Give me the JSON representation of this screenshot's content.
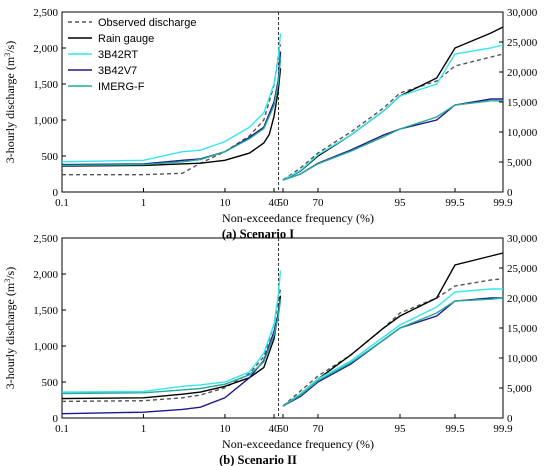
{
  "figure": {
    "background": "#ffffff"
  },
  "chart_data": [
    {
      "type": "line",
      "caption": "(a) Scenario I",
      "xlabel": "Non-exceedance frequency (%)",
      "ylabel_left": "3-hourly discharge (m",
      "ylabel_sup": "3",
      "ylabel_tail": "/s)",
      "x_ticks": [
        {
          "v": 0.1,
          "label": "0.1"
        },
        {
          "v": 1,
          "label": "1"
        },
        {
          "v": 10,
          "label": "10"
        },
        {
          "v": 40,
          "label": "40"
        },
        {
          "v": 50,
          "label": "50"
        },
        {
          "v": 70,
          "label": "70"
        },
        {
          "v": 95,
          "label": "95"
        },
        {
          "v": 99.5,
          "label": "99.5"
        },
        {
          "v": 99.9,
          "label": "99.9"
        }
      ],
      "ylim_left": [
        0,
        2500
      ],
      "y_ticks_left": [
        "0",
        "500",
        "1,000",
        "1,500",
        "2,000",
        "2,500"
      ],
      "ylim_right": [
        0,
        30000
      ],
      "y_ticks_right": [
        "0",
        "5,000",
        "10,000",
        "15,000",
        "20,000",
        "25,000",
        "30,000"
      ],
      "divider_x": 50,
      "legend_position": "top-left",
      "series": [
        {
          "name": "Observed  discharge",
          "color": "#555555",
          "dash": "4,3",
          "left": [
            [
              0.1,
              240
            ],
            [
              1,
              240
            ],
            [
              3,
              260
            ],
            [
              5,
              400
            ],
            [
              10,
              560
            ],
            [
              20,
              780
            ],
            [
              30,
              1000
            ],
            [
              40,
              1480
            ],
            [
              45,
              1880
            ],
            [
              48,
              2050
            ]
          ],
          "right": [
            [
              50,
              2000
            ],
            [
              60,
              4000
            ],
            [
              70,
              6500
            ],
            [
              80,
              10000
            ],
            [
              90,
              14000
            ],
            [
              95,
              16500
            ],
            [
              98,
              18500
            ],
            [
              99.5,
              21000
            ],
            [
              99.8,
              22500
            ],
            [
              99.9,
              23000
            ]
          ]
        },
        {
          "name": "Rain gauge",
          "color": "#000000",
          "dash": "",
          "left": [
            [
              0.1,
              360
            ],
            [
              1,
              370
            ],
            [
              5,
              400
            ],
            [
              10,
              440
            ],
            [
              20,
              540
            ],
            [
              30,
              680
            ],
            [
              35,
              800
            ],
            [
              40,
              1050
            ],
            [
              45,
              1400
            ],
            [
              48,
              1720
            ]
          ],
          "right": [
            [
              50,
              2000
            ],
            [
              60,
              3500
            ],
            [
              70,
              6000
            ],
            [
              80,
              9500
            ],
            [
              90,
              13500
            ],
            [
              95,
              16000
            ],
            [
              98,
              19000
            ],
            [
              99.5,
              24000
            ],
            [
              99.8,
              26500
            ],
            [
              99.9,
              27500
            ]
          ]
        },
        {
          "name": "3B42RT",
          "color": "#33e6ee",
          "dash": "",
          "left": [
            [
              0.1,
              420
            ],
            [
              1,
              440
            ],
            [
              3,
              560
            ],
            [
              5,
              580
            ],
            [
              10,
              700
            ],
            [
              20,
              900
            ],
            [
              30,
              1100
            ],
            [
              40,
              1500
            ],
            [
              45,
              1850
            ],
            [
              48,
              2200
            ]
          ],
          "right": [
            [
              50,
              2000
            ],
            [
              60,
              3600
            ],
            [
              70,
              6200
            ],
            [
              80,
              9500
            ],
            [
              90,
              13500
            ],
            [
              95,
              16000
            ],
            [
              98,
              18000
            ],
            [
              99.5,
              23000
            ],
            [
              99.8,
              24000
            ],
            [
              99.9,
              24500
            ]
          ]
        },
        {
          "name": "3B42V7",
          "color": "#1a1a8e",
          "dash": "",
          "left": [
            [
              0.1,
              380
            ],
            [
              1,
              390
            ],
            [
              3,
              440
            ],
            [
              5,
              460
            ],
            [
              10,
              560
            ],
            [
              20,
              760
            ],
            [
              30,
              900
            ],
            [
              40,
              1250
            ],
            [
              45,
              1550
            ],
            [
              48,
              1950
            ]
          ],
          "right": [
            [
              50,
              2000
            ],
            [
              60,
              3000
            ],
            [
              70,
              4800
            ],
            [
              80,
              7000
            ],
            [
              90,
              9500
            ],
            [
              95,
              10500
            ],
            [
              98,
              12000
            ],
            [
              99.5,
              14500
            ],
            [
              99.8,
              15500
            ],
            [
              99.9,
              15500
            ]
          ]
        },
        {
          "name": "IMERG-F",
          "color": "#2aa898",
          "dash": "",
          "left": [
            [
              0.1,
              370
            ],
            [
              1,
              380
            ],
            [
              3,
              420
            ],
            [
              5,
              450
            ],
            [
              10,
              560
            ],
            [
              20,
              740
            ],
            [
              30,
              880
            ],
            [
              40,
              1200
            ],
            [
              45,
              1500
            ],
            [
              48,
              1850
            ]
          ],
          "right": [
            [
              50,
              2000
            ],
            [
              60,
              3000
            ],
            [
              70,
              4700
            ],
            [
              80,
              6800
            ],
            [
              90,
              9200
            ],
            [
              95,
              10500
            ],
            [
              98,
              12500
            ],
            [
              99.5,
              14500
            ],
            [
              99.8,
              15200
            ],
            [
              99.9,
              15200
            ]
          ]
        }
      ]
    },
    {
      "type": "line",
      "caption": "(b) Scenario II",
      "xlabel": "Non-exceedance frequency (%)",
      "ylabel_left": "3-hourly discharge (m",
      "ylabel_sup": "3",
      "ylabel_tail": "/s)",
      "x_ticks": [
        {
          "v": 0.1,
          "label": "0.1"
        },
        {
          "v": 1,
          "label": "1"
        },
        {
          "v": 10,
          "label": "10"
        },
        {
          "v": 40,
          "label": "40"
        },
        {
          "v": 50,
          "label": "50"
        },
        {
          "v": 70,
          "label": "70"
        },
        {
          "v": 95,
          "label": "95"
        },
        {
          "v": 99.5,
          "label": "99.5"
        },
        {
          "v": 99.9,
          "label": "99.9"
        }
      ],
      "ylim_left": [
        0,
        2500
      ],
      "y_ticks_left": [
        "0",
        "500",
        "1,000",
        "1,500",
        "2,000",
        "2,500"
      ],
      "ylim_right": [
        0,
        30000
      ],
      "y_ticks_right": [
        "0",
        "5,000",
        "10,000",
        "15,000",
        "20,000",
        "25,000",
        "30,000"
      ],
      "divider_x": 50,
      "legend_position": "none",
      "series": [
        {
          "name": "Observed  discharge",
          "color": "#555555",
          "dash": "4,3",
          "left": [
            [
              0.1,
              230
            ],
            [
              1,
              240
            ],
            [
              3,
              280
            ],
            [
              5,
              320
            ],
            [
              10,
              420
            ],
            [
              20,
              620
            ],
            [
              30,
              850
            ],
            [
              40,
              1300
            ],
            [
              45,
              1600
            ],
            [
              48,
              1800
            ]
          ],
          "right": [
            [
              50,
              2000
            ],
            [
              60,
              4500
            ],
            [
              70,
              7000
            ],
            [
              80,
              10500
            ],
            [
              90,
              15000
            ],
            [
              95,
              17500
            ],
            [
              98,
              20000
            ],
            [
              99.5,
              22000
            ],
            [
              99.8,
              23000
            ],
            [
              99.9,
              23200
            ]
          ]
        },
        {
          "name": "Rain gauge",
          "color": "#000000",
          "dash": "",
          "left": [
            [
              0.1,
              270
            ],
            [
              1,
              280
            ],
            [
              3,
              330
            ],
            [
              5,
              360
            ],
            [
              10,
              440
            ],
            [
              20,
              560
            ],
            [
              30,
              700
            ],
            [
              40,
              1100
            ],
            [
              45,
              1450
            ],
            [
              48,
              1700
            ]
          ],
          "right": [
            [
              50,
              2000
            ],
            [
              60,
              4000
            ],
            [
              70,
              6500
            ],
            [
              80,
              10500
            ],
            [
              90,
              15000
            ],
            [
              95,
              17000
            ],
            [
              98,
              20000
            ],
            [
              99.5,
              25500
            ],
            [
              99.8,
              27000
            ],
            [
              99.9,
              27500
            ]
          ]
        },
        {
          "name": "3B42RT",
          "color": "#33e6ee",
          "dash": "",
          "left": [
            [
              0.1,
              360
            ],
            [
              1,
              370
            ],
            [
              3,
              440
            ],
            [
              5,
              460
            ],
            [
              10,
              500
            ],
            [
              20,
              640
            ],
            [
              30,
              900
            ],
            [
              40,
              1300
            ],
            [
              45,
              1700
            ],
            [
              48,
              2050
            ]
          ],
          "right": [
            [
              50,
              2000
            ],
            [
              60,
              4000
            ],
            [
              70,
              6500
            ],
            [
              80,
              9500
            ],
            [
              90,
              13500
            ],
            [
              95,
              15500
            ],
            [
              98,
              18500
            ],
            [
              99.5,
              21000
            ],
            [
              99.8,
              21500
            ],
            [
              99.9,
              21500
            ]
          ]
        },
        {
          "name": "3B42V7",
          "color": "#1a1a8e",
          "dash": "",
          "left": [
            [
              0.1,
              60
            ],
            [
              1,
              80
            ],
            [
              3,
              120
            ],
            [
              5,
              150
            ],
            [
              10,
              280
            ],
            [
              20,
              560
            ],
            [
              30,
              800
            ],
            [
              40,
              1200
            ],
            [
              45,
              1450
            ],
            [
              48,
              1650
            ]
          ],
          "right": [
            [
              50,
              2000
            ],
            [
              60,
              3600
            ],
            [
              70,
              6000
            ],
            [
              80,
              9000
            ],
            [
              90,
              13000
            ],
            [
              95,
              15000
            ],
            [
              98,
              17000
            ],
            [
              99.5,
              19500
            ],
            [
              99.8,
              20000
            ],
            [
              99.9,
              20000
            ]
          ]
        },
        {
          "name": "IMERG-F",
          "color": "#2aa898",
          "dash": "",
          "left": [
            [
              0.1,
              340
            ],
            [
              1,
              350
            ],
            [
              3,
              390
            ],
            [
              5,
              410
            ],
            [
              10,
              470
            ],
            [
              20,
              600
            ],
            [
              30,
              780
            ],
            [
              40,
              1150
            ],
            [
              45,
              1400
            ],
            [
              48,
              1650
            ]
          ],
          "right": [
            [
              50,
              2000
            ],
            [
              60,
              3800
            ],
            [
              70,
              6200
            ],
            [
              80,
              9200
            ],
            [
              90,
              13000
            ],
            [
              95,
              15000
            ],
            [
              98,
              17500
            ],
            [
              99.5,
              19500
            ],
            [
              99.8,
              19800
            ],
            [
              99.9,
              20000
            ]
          ]
        }
      ]
    }
  ]
}
